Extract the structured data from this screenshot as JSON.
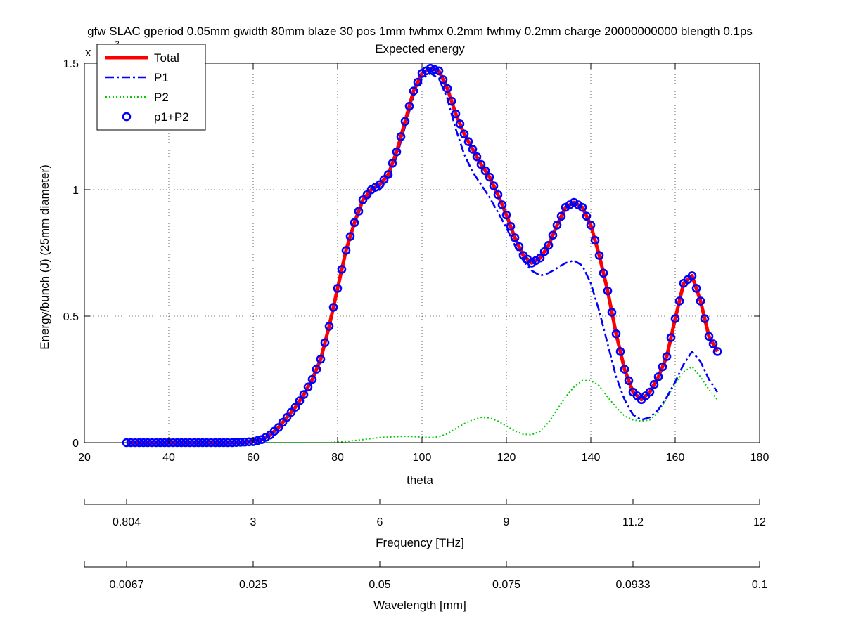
{
  "chart_data": {
    "type": "line",
    "title": "gfw SLAC gperiod 0.05mm gwidth 80mm blaze 30 pos 1mm fwhmx 0.2mm fwhmy 0.2mm charge 20000000000 blength 0.1ps",
    "subtitle": "Expected energy",
    "xlabel": "theta",
    "ylabel": "Energy/bunch (J) (25mm diameter)",
    "y_exponent_label": "x",
    "y_exponent_value": "-3",
    "xlim": [
      20,
      180
    ],
    "ylim": [
      0,
      1.5
    ],
    "grid": true,
    "legend_position": "top-left",
    "x_ticks": [
      "20",
      "40",
      "60",
      "80",
      "100",
      "120",
      "140",
      "160",
      "180"
    ],
    "y_ticks": [
      "0",
      "0.5",
      "1",
      "1.5"
    ],
    "x_tick_values": [
      20,
      40,
      60,
      80,
      100,
      120,
      140,
      160,
      180
    ],
    "y_tick_values": [
      0,
      0.5,
      1,
      1.5
    ],
    "secondary_axes": [
      {
        "label": "Frequency [THz]",
        "tick_positions": [
          30,
          60,
          90,
          120,
          150,
          180
        ],
        "tick_labels": [
          "0.804",
          "3",
          "6",
          "9",
          "11.2",
          "12"
        ]
      },
      {
        "label": "Wavelength [mm]",
        "tick_positions": [
          30,
          60,
          90,
          120,
          150,
          180
        ],
        "tick_labels": [
          "0.0067",
          "0.025",
          "0.05",
          "0.075",
          "0.0933",
          "0.1"
        ]
      }
    ],
    "series": [
      {
        "name": "Total",
        "color": "#ff0000",
        "style": "solid",
        "x": [
          30,
          40,
          50,
          55,
          60,
          62,
          64,
          66,
          68,
          70,
          72,
          74,
          76,
          78,
          80,
          82,
          84,
          86,
          88,
          90,
          92,
          94,
          96,
          98,
          100,
          102,
          104,
          106,
          108,
          110,
          112,
          114,
          116,
          118,
          120,
          122,
          124,
          126,
          128,
          130,
          132,
          134,
          136,
          138,
          140,
          142,
          144,
          146,
          148,
          150,
          152,
          154,
          156,
          158,
          160,
          162,
          164,
          166,
          168,
          170
        ],
        "y": [
          0,
          0,
          0,
          0,
          0.004,
          0.012,
          0.03,
          0.06,
          0.1,
          0.14,
          0.19,
          0.25,
          0.33,
          0.46,
          0.61,
          0.76,
          0.87,
          0.96,
          1.0,
          1.02,
          1.06,
          1.15,
          1.27,
          1.39,
          1.46,
          1.48,
          1.47,
          1.4,
          1.3,
          1.22,
          1.16,
          1.1,
          1.05,
          0.98,
          0.9,
          0.81,
          0.74,
          0.71,
          0.73,
          0.78,
          0.86,
          0.93,
          0.95,
          0.93,
          0.86,
          0.74,
          0.6,
          0.43,
          0.29,
          0.2,
          0.17,
          0.2,
          0.26,
          0.34,
          0.49,
          0.63,
          0.66,
          0.56,
          0.42,
          0.36
        ]
      },
      {
        "name": "P1",
        "color": "#0000ff",
        "style": "dashdot",
        "x": [
          30,
          40,
          50,
          55,
          60,
          62,
          64,
          66,
          68,
          70,
          72,
          74,
          76,
          78,
          80,
          82,
          84,
          86,
          88,
          90,
          92,
          94,
          96,
          98,
          100,
          102,
          104,
          106,
          108,
          110,
          112,
          114,
          116,
          118,
          120,
          122,
          124,
          126,
          128,
          130,
          132,
          134,
          136,
          138,
          140,
          142,
          144,
          146,
          148,
          150,
          152,
          154,
          156,
          158,
          160,
          162,
          164,
          166,
          168,
          170
        ],
        "y": [
          0,
          0,
          0,
          0,
          0.004,
          0.012,
          0.03,
          0.06,
          0.1,
          0.14,
          0.19,
          0.25,
          0.33,
          0.46,
          0.6,
          0.75,
          0.86,
          0.95,
          0.99,
          1.0,
          1.04,
          1.13,
          1.25,
          1.37,
          1.44,
          1.46,
          1.44,
          1.36,
          1.24,
          1.14,
          1.07,
          1.02,
          0.97,
          0.91,
          0.85,
          0.78,
          0.72,
          0.68,
          0.66,
          0.67,
          0.69,
          0.71,
          0.72,
          0.7,
          0.63,
          0.52,
          0.39,
          0.26,
          0.17,
          0.11,
          0.09,
          0.1,
          0.13,
          0.18,
          0.24,
          0.31,
          0.36,
          0.32,
          0.25,
          0.2
        ]
      },
      {
        "name": "P2",
        "color": "#00cc00",
        "style": "dotted",
        "x": [
          30,
          40,
          50,
          55,
          60,
          62,
          64,
          66,
          68,
          70,
          72,
          74,
          76,
          78,
          80,
          82,
          84,
          86,
          88,
          90,
          92,
          94,
          96,
          98,
          100,
          102,
          104,
          106,
          108,
          110,
          112,
          114,
          116,
          118,
          120,
          122,
          124,
          126,
          128,
          130,
          132,
          134,
          136,
          138,
          140,
          142,
          144,
          146,
          148,
          150,
          152,
          154,
          156,
          158,
          160,
          162,
          164,
          166,
          168,
          170
        ],
        "y": [
          0,
          0,
          0,
          0,
          0,
          0,
          0,
          0,
          0,
          0,
          0,
          0,
          0,
          0,
          0.003,
          0.005,
          0.008,
          0.012,
          0.016,
          0.02,
          0.022,
          0.024,
          0.025,
          0.024,
          0.022,
          0.02,
          0.023,
          0.035,
          0.055,
          0.075,
          0.09,
          0.1,
          0.098,
          0.085,
          0.066,
          0.046,
          0.033,
          0.031,
          0.045,
          0.08,
          0.13,
          0.18,
          0.22,
          0.245,
          0.245,
          0.225,
          0.18,
          0.14,
          0.105,
          0.09,
          0.085,
          0.09,
          0.12,
          0.175,
          0.235,
          0.28,
          0.3,
          0.26,
          0.21,
          0.17
        ]
      },
      {
        "name": "p1+P2",
        "color": "#0000ff",
        "style": "markers",
        "x": [
          30,
          40,
          50,
          55,
          60,
          62,
          64,
          66,
          68,
          70,
          72,
          74,
          76,
          78,
          80,
          82,
          84,
          86,
          88,
          90,
          92,
          94,
          96,
          98,
          100,
          102,
          104,
          106,
          108,
          110,
          112,
          114,
          116,
          118,
          120,
          122,
          124,
          126,
          128,
          130,
          132,
          134,
          136,
          138,
          140,
          142,
          144,
          146,
          148,
          150,
          152,
          154,
          156,
          158,
          160,
          162,
          164,
          166,
          168,
          170
        ],
        "y": [
          0,
          0,
          0,
          0,
          0.004,
          0.012,
          0.03,
          0.06,
          0.1,
          0.14,
          0.19,
          0.25,
          0.33,
          0.46,
          0.61,
          0.76,
          0.87,
          0.96,
          1.0,
          1.02,
          1.06,
          1.15,
          1.27,
          1.39,
          1.46,
          1.48,
          1.47,
          1.4,
          1.3,
          1.22,
          1.16,
          1.1,
          1.05,
          0.98,
          0.9,
          0.81,
          0.74,
          0.71,
          0.73,
          0.78,
          0.86,
          0.93,
          0.95,
          0.93,
          0.86,
          0.74,
          0.6,
          0.43,
          0.29,
          0.2,
          0.17,
          0.2,
          0.26,
          0.34,
          0.49,
          0.63,
          0.66,
          0.56,
          0.42,
          0.36
        ]
      }
    ]
  }
}
